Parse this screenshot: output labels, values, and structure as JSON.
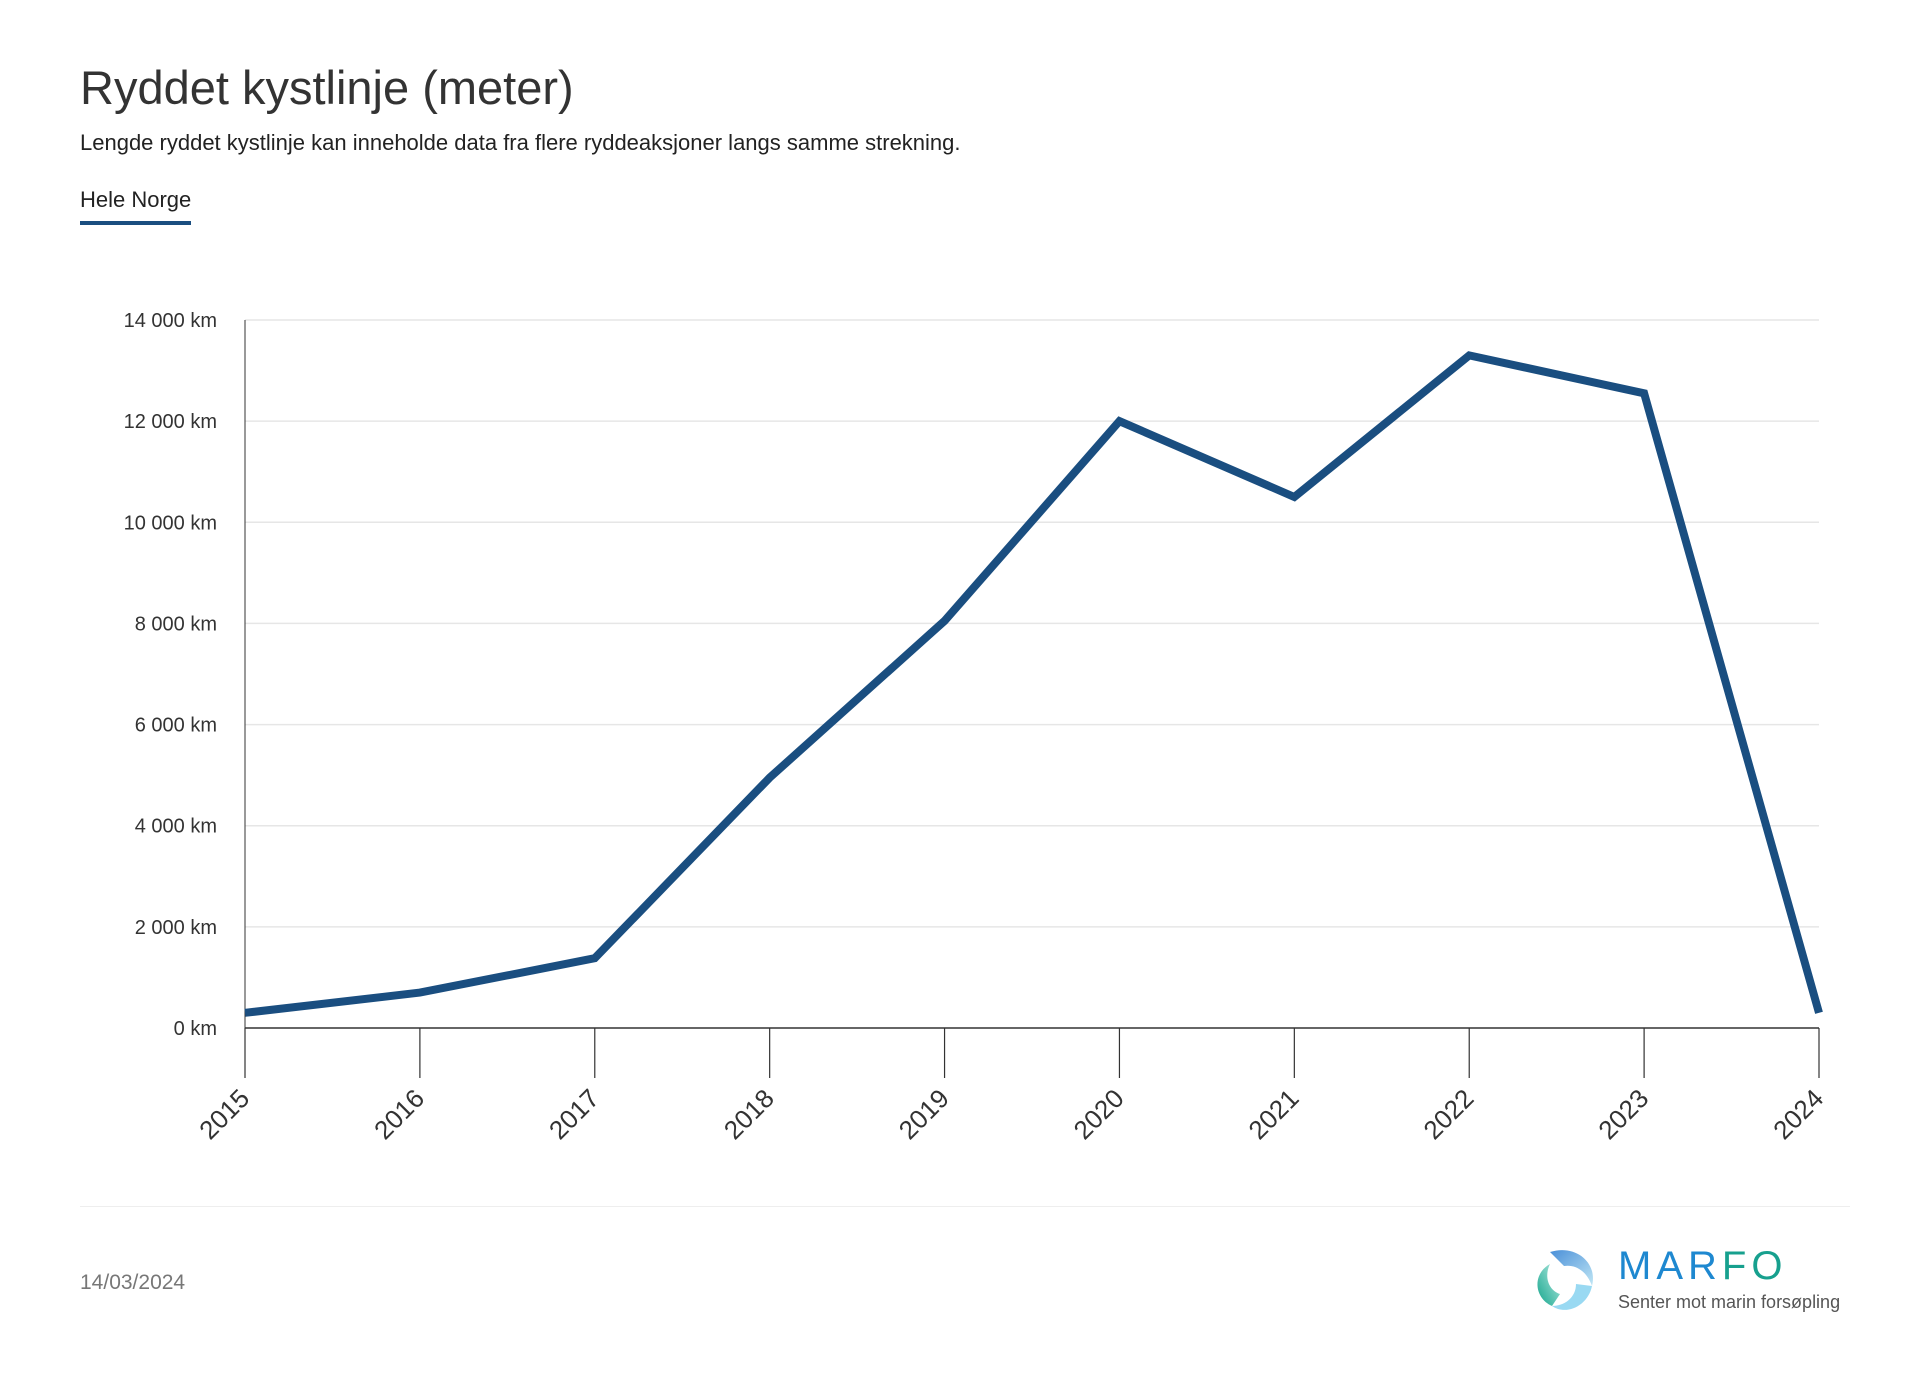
{
  "title": "Ryddet kystlinje (meter)",
  "subtitle": "Lengde ryddet kystlinje kan inneholde data fra flere ryddeaksjoner langs samme strekning.",
  "tab": "Hele Norge",
  "date": "14/03/2024",
  "logo": {
    "name_a": "MAR",
    "name_b": "FO",
    "tagline": "Senter mot marin forsøpling"
  },
  "colors": {
    "line": "#1a4e80",
    "grid": "#e6e6e6",
    "axis": "#333333"
  },
  "chart_data": {
    "type": "line",
    "title": "Ryddet kystlinje (meter)",
    "xlabel": "",
    "ylabel": "",
    "categories": [
      "2015",
      "2016",
      "2017",
      "2018",
      "2019",
      "2020",
      "2021",
      "2022",
      "2023",
      "2024"
    ],
    "series": [
      {
        "name": "Hele Norge",
        "values": [
          300,
          700,
          1380,
          4950,
          8050,
          12000,
          10500,
          13300,
          12550,
          300
        ]
      }
    ],
    "ylim": [
      0,
      14000
    ],
    "yticks": [
      0,
      2000,
      4000,
      6000,
      8000,
      10000,
      12000,
      14000
    ],
    "ytick_labels": [
      "0 km",
      "2 000 km",
      "4 000 km",
      "6 000 km",
      "8 000 km",
      "10 000 km",
      "12 000 km",
      "14 000 km"
    ],
    "grid": true,
    "legend": "none"
  }
}
